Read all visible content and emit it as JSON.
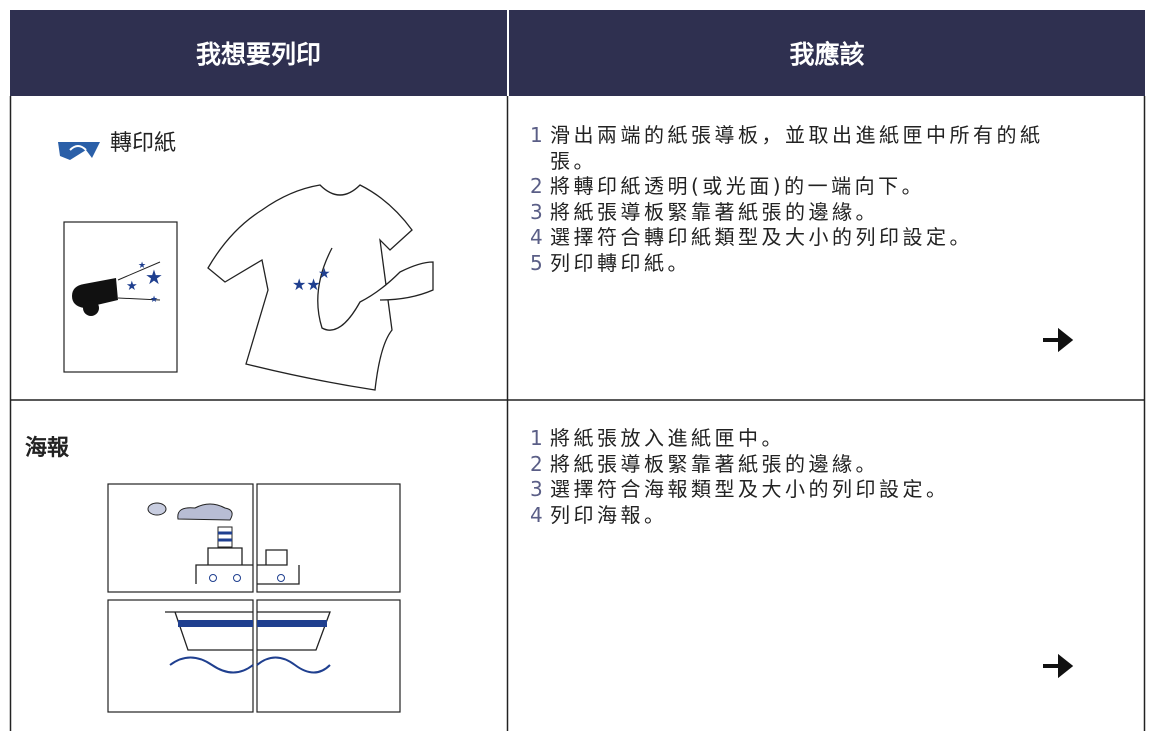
{
  "table": {
    "header": [
      "我想要列印",
      "我應該"
    ],
    "rows": [
      {
        "title": "轉印紙",
        "steps": [
          {
            "number": "1",
            "text": "滑出兩端的紙張導板，並取出進紙匣中所有的紙張。"
          },
          {
            "number": "2",
            "text": "將轉印紙透明(或光面)的一端向下。"
          },
          {
            "number": "3",
            "text": "將紙張導板緊靠著紙張的邊緣。"
          },
          {
            "number": "4",
            "text": "選擇符合轉印紙類型及大小的列印設定。"
          },
          {
            "number": "5",
            "text": "列印轉印紙。"
          }
        ]
      },
      {
        "title": "海報",
        "steps": [
          {
            "number": "1",
            "text": "將紙張放入進紙匣中。"
          },
          {
            "number": "2",
            "text": "將紙張導板緊靠著紙張的邊緣。"
          },
          {
            "number": "3",
            "text": "選擇符合海報類型及大小的列印設定。"
          },
          {
            "number": "4",
            "text": "列印海報。"
          }
        ]
      }
    ]
  }
}
